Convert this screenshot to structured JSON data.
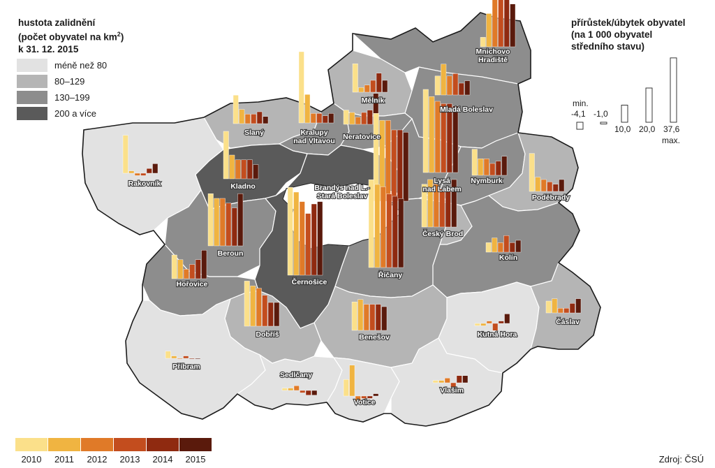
{
  "legend": {
    "title_line1": "hustota zalidnění",
    "title_line2_pre": "(počet obyvatel na km",
    "title_line2_sup": "2",
    "title_line2_post": ")",
    "title_line3": "k 31. 12. 2015",
    "density_classes": [
      {
        "label": "méně než 80",
        "color": "#e2e2e2"
      },
      {
        "label": "80–129",
        "color": "#b5b5b5"
      },
      {
        "label": "130–199",
        "color": "#8d8d8d"
      },
      {
        "label": "200 a více",
        "color": "#5a5a5a"
      }
    ]
  },
  "growth_legend": {
    "title_line1": "přírůstek/úbytek obyvatel",
    "title_line2": "(na 1 000 obyvatel",
    "title_line3": "středního stavu)",
    "min_label": "min.",
    "max_label": "max.",
    "values": [
      -4.1,
      -1.0,
      10.0,
      20.0,
      37.6
    ],
    "value_labels": [
      "-4,1",
      "-1,0",
      "10,0",
      "20,0",
      "37,6"
    ]
  },
  "years": [
    {
      "label": "2010",
      "color": "#fbe08a"
    },
    {
      "label": "2011",
      "color": "#f0b441"
    },
    {
      "label": "2012",
      "color": "#e07a28"
    },
    {
      "label": "2013",
      "color": "#c34d1e"
    },
    {
      "label": "2014",
      "color": "#8f2a10"
    },
    {
      "label": "2015",
      "color": "#5a1a0c"
    }
  ],
  "source": "Zdroj: ČSÚ",
  "districts": [
    {
      "name": "Mnichovo Hradiště",
      "density": 3,
      "values": [
        4,
        14,
        22,
        24,
        22,
        18
      ]
    },
    {
      "name": "Mělník",
      "density": 2,
      "values": [
        12,
        2,
        3,
        5,
        8,
        5
      ]
    },
    {
      "name": "Mladá Boleslav",
      "density": 3,
      "values": [
        8,
        13,
        8,
        9,
        5,
        6
      ]
    },
    {
      "name": "Slaný",
      "density": 2,
      "values": [
        12,
        6,
        4,
        4,
        5,
        3
      ]
    },
    {
      "name": "Kralupy nad Vltavou",
      "density": 3,
      "values": [
        30,
        12,
        4,
        4,
        3,
        4
      ]
    },
    {
      "name": "Neratovice",
      "density": 3,
      "values": [
        6,
        5,
        3,
        5,
        6,
        13
      ]
    },
    {
      "name": "Rakovník",
      "density": 1,
      "values": [
        16,
        1,
        -1,
        -1,
        2,
        4
      ]
    },
    {
      "name": "Kladno",
      "density": 4,
      "values": [
        20,
        10,
        8,
        8,
        8,
        6
      ]
    },
    {
      "name": "Brandýs nad L.-Stará Boleslav",
      "density": 4,
      "values": [
        37,
        34,
        34,
        30,
        30,
        29
      ]
    },
    {
      "name": "Lysá nad Labem",
      "density": 3,
      "values": [
        35,
        32,
        30,
        29,
        29,
        28
      ]
    },
    {
      "name": "Nymburk",
      "density": 3,
      "values": [
        11,
        7,
        7,
        5,
        6,
        8
      ]
    },
    {
      "name": "Poděbrady",
      "density": 2,
      "values": [
        16,
        6,
        5,
        4,
        3,
        5
      ]
    },
    {
      "name": "Beroun",
      "density": 3,
      "values": [
        22,
        20,
        20,
        18,
        16,
        22
      ]
    },
    {
      "name": "Černošice",
      "density": 4,
      "values": [
        37,
        35,
        31,
        26,
        30,
        31
      ]
    },
    {
      "name": "Říčany",
      "density": 3,
      "values": [
        37,
        35,
        34,
        31,
        30,
        29
      ]
    },
    {
      "name": "Český Brod",
      "density": 2,
      "values": [
        18,
        20,
        18,
        16,
        15,
        20
      ]
    },
    {
      "name": "Kolín",
      "density": 3,
      "values": [
        4,
        6,
        4,
        7,
        4,
        5
      ]
    },
    {
      "name": "Hořovice",
      "density": 3,
      "values": [
        10,
        8,
        4,
        6,
        8,
        12
      ]
    },
    {
      "name": "Dobříš",
      "density": 2,
      "values": [
        19,
        17,
        16,
        13,
        10,
        10
      ]
    },
    {
      "name": "Benešov",
      "density": 2,
      "values": [
        12,
        13,
        11,
        11,
        11,
        10
      ]
    },
    {
      "name": "Kutná Hora",
      "density": 1,
      "values": [
        -1,
        -1,
        1,
        -3,
        1,
        4
      ]
    },
    {
      "name": "Čáslav",
      "density": 2,
      "values": [
        5,
        6,
        2,
        2,
        4,
        6
      ]
    },
    {
      "name": "Příbram",
      "density": 1,
      "values": [
        3,
        1,
        0,
        1,
        0,
        0
      ]
    },
    {
      "name": "Sedlčany",
      "density": 1,
      "values": [
        1,
        1,
        2,
        -1,
        -2,
        -2
      ]
    },
    {
      "name": "Votice",
      "density": 1,
      "values": [
        7,
        13,
        -3,
        -1,
        -1,
        1
      ]
    },
    {
      "name": "Vlašim",
      "density": 1,
      "values": [
        1,
        1,
        2,
        -2,
        3,
        3
      ]
    }
  ]
}
